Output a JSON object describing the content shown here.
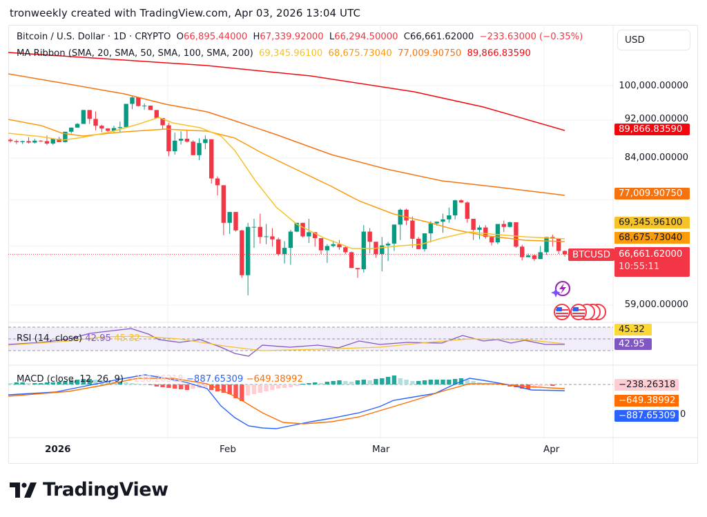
{
  "caption": "tronweekly created with TradingView.com, Apr 03, 2026 13:04 UTC",
  "header": {
    "symbol": "Bitcoin / U.S. Dollar · 1D · CRYPTO",
    "open_label": "O",
    "open": "66,895.44000",
    "high_label": "H",
    "high": "67,339.92000",
    "low_label": "L",
    "low": "66,294.50000",
    "close_label": "C",
    "close": "66,661.62000",
    "change": "−233.63000 (−0.35%)"
  },
  "ma_ribbon": {
    "label": "MA Ribbon (SMA, 20, SMA, 50, SMA, 100, SMA, 200)",
    "ma20": "69,345.96100",
    "ma50": "68,675.73040",
    "ma100": "77,009.90750",
    "ma200": "89,866.83590"
  },
  "currency_button": "USD",
  "price_axis": {
    "ticks": [
      "100,000.00000",
      "92,000.00000",
      "84,000.00000",
      "59,000.00000"
    ]
  },
  "price_tags": {
    "ma200": "89,866.83590",
    "ma100": "77,009.90750",
    "ma20": "69,345.96100",
    "ma50": "68,675.73040",
    "last_price": "66,661.62000",
    "countdown": "10:55:11",
    "symbol_tag": "BTCUSD"
  },
  "rsi": {
    "label": "RSI (14, close)",
    "value": "42.95",
    "smoothed": "45.32"
  },
  "macd": {
    "label": "MACD (close, 12, 26, 9)",
    "histogram": "−238.26318",
    "macd": "−887.65309",
    "signal": "−649.38992",
    "zero_tick": "0"
  },
  "time_axis": [
    "2026",
    "Feb",
    "Mar",
    "Apr"
  ],
  "branding": "TradingView",
  "colors": {
    "up": "#089981",
    "down": "#f23645",
    "ma20": "#f5c227",
    "ma50": "#fb9a0a",
    "ma100": "#f6720f",
    "ma200": "#f3060e",
    "rsi": "#7e57c2",
    "macd": "#2962ff",
    "signal": "#ff6d00"
  },
  "chart_data": {
    "type": "candlestick",
    "title": "Bitcoin / U.S. Dollar · 1D · CRYPTO",
    "xlabel": "",
    "ylabel": "USD",
    "ylim": [
      55000,
      106000
    ],
    "x_ticks": [
      "2026",
      "Feb",
      "Mar",
      "Apr"
    ],
    "y_ticks": [
      59000,
      84000,
      92000,
      100000
    ],
    "ohlc_approx": [
      [
        87800,
        88100,
        87200,
        87500
      ],
      [
        87500,
        87800,
        86900,
        87300
      ],
      [
        87300,
        87600,
        86900,
        87500
      ],
      [
        87500,
        88300,
        87000,
        87200
      ],
      [
        87200,
        88000,
        87000,
        87600
      ],
      [
        87600,
        87700,
        87300,
        87500
      ],
      [
        87500,
        88700,
        86700,
        87000
      ],
      [
        87000,
        88000,
        86700,
        88000
      ],
      [
        88000,
        88400,
        87600,
        87300
      ],
      [
        87300,
        88400,
        87200,
        89500
      ],
      [
        89500,
        90300,
        89100,
        90400
      ],
      [
        90400,
        91400,
        90400,
        91200
      ],
      [
        91200,
        93500,
        92200,
        94300
      ],
      [
        94300,
        94200,
        91200,
        92300
      ],
      [
        92300,
        94000,
        89800,
        90800
      ],
      [
        90800,
        91000,
        89400,
        90200
      ],
      [
        90200,
        90300,
        89400,
        89700
      ],
      [
        89700,
        90800,
        89400,
        90300
      ],
      [
        90300,
        91700,
        89400,
        90500
      ],
      [
        90500,
        95600,
        90600,
        95700
      ],
      [
        95700,
        97400,
        94500,
        97200
      ],
      [
        97200,
        97100,
        95100,
        95200
      ],
      [
        95200,
        95800,
        94400,
        95300
      ],
      [
        95300,
        95200,
        94500,
        94300
      ],
      [
        94300,
        94300,
        92500,
        92500
      ],
      [
        92500,
        91000,
        90100,
        90900
      ],
      [
        90900,
        91400,
        84400,
        85400
      ],
      [
        85400,
        89300,
        84700,
        87600
      ],
      [
        87600,
        89600,
        86800,
        88000
      ],
      [
        88000,
        89700,
        87200,
        87400
      ],
      [
        87400,
        87700,
        85600,
        84600
      ],
      [
        84600,
        88100,
        83600,
        87100
      ],
      [
        87100,
        88700,
        85800,
        87900
      ],
      [
        87900,
        87900,
        79000,
        80000
      ],
      [
        80000,
        80400,
        76800,
        78700
      ],
      [
        78700,
        78700,
        69800,
        71900
      ],
      [
        71900,
        73000,
        70000,
        73800
      ],
      [
        73800,
        73800,
        70400,
        70600
      ],
      [
        70600,
        70700,
        63000,
        63400
      ],
      [
        63400,
        71900,
        60400,
        71200
      ],
      [
        71200,
        72600,
        67700,
        71200
      ],
      [
        71200,
        73500,
        68400,
        69500
      ],
      [
        69500,
        71700,
        68300,
        69600
      ],
      [
        69600,
        71000,
        67900,
        69100
      ],
      [
        69100,
        69400,
        66400,
        66700
      ],
      [
        66700,
        68800,
        65200,
        67700
      ],
      [
        67700,
        70700,
        65000,
        70400
      ],
      [
        70400,
        71700,
        70300,
        71900
      ],
      [
        71900,
        71900,
        69400,
        69600
      ],
      [
        69600,
        72600,
        68500,
        70300
      ],
      [
        70300,
        70300,
        67900,
        69300
      ],
      [
        69300,
        69300,
        66700,
        67300
      ],
      [
        67300,
        68300,
        65300,
        68000
      ],
      [
        68000,
        68900,
        67800,
        68300
      ],
      [
        68300,
        69000,
        67400,
        67800
      ],
      [
        67800,
        68100,
        66700,
        67000
      ],
      [
        67000,
        67100,
        65300,
        64500
      ],
      [
        64500,
        64000,
        63000,
        64300
      ],
      [
        64300,
        71500,
        63800,
        70400
      ],
      [
        70400,
        71000,
        66800,
        68700
      ],
      [
        68700,
        68700,
        66100,
        66700
      ],
      [
        66700,
        69500,
        64000,
        68100
      ],
      [
        68100,
        68700,
        65600,
        68400
      ],
      [
        68400,
        71200,
        67200,
        71600
      ],
      [
        71600,
        74400,
        69000,
        74200
      ],
      [
        74200,
        74400,
        71500,
        72300
      ],
      [
        72300,
        73000,
        67700,
        69200
      ],
      [
        69200,
        69500,
        67800,
        67500
      ],
      [
        67500,
        70100,
        67100,
        70100
      ],
      [
        70100,
        72200,
        68600,
        71800
      ],
      [
        71800,
        71900,
        71400,
        72100
      ],
      [
        72100,
        73500,
        70200,
        72500
      ],
      [
        72500,
        74600,
        71900,
        73200
      ],
      [
        73200,
        76000,
        72500,
        75900
      ],
      [
        75900,
        76100,
        75400,
        75500
      ],
      [
        75500,
        75700,
        71900,
        72600
      ],
      [
        72600,
        72600,
        69000,
        70700
      ],
      [
        70700,
        71500,
        69100,
        71100
      ],
      [
        71100,
        71500,
        69200,
        69500
      ],
      [
        69500,
        69700,
        68100,
        68600
      ],
      [
        68600,
        71600,
        68300,
        71700
      ],
      [
        71700,
        72300,
        70300,
        71200
      ],
      [
        71200,
        72100,
        71100,
        72000
      ],
      [
        72000,
        72000,
        67700,
        67900
      ],
      [
        67900,
        68200,
        65700,
        66200
      ],
      [
        66200,
        66800,
        66200,
        66500
      ],
      [
        66500,
        66600,
        65600,
        65900
      ],
      [
        65900,
        68000,
        66200,
        67000
      ],
      [
        67000,
        69000,
        66600,
        69500
      ],
      [
        69500,
        69900,
        67900,
        69200
      ],
      [
        69200,
        69300,
        66700,
        67200
      ],
      [
        67200,
        67300,
        66300,
        66661
      ]
    ],
    "series": [
      {
        "name": "SMA 20",
        "last": 69345.961
      },
      {
        "name": "SMA 50",
        "last": 68675.7304
      },
      {
        "name": "SMA 100",
        "last": 77009.9075
      },
      {
        "name": "SMA 200",
        "last": 89866.8359
      }
    ],
    "sub_charts": [
      {
        "type": "line",
        "title": "RSI (14, close)",
        "series": [
          {
            "name": "RSI",
            "last": 42.95
          },
          {
            "name": "RSI-based MA",
            "last": 45.32
          }
        ],
        "bands": [
          30,
          50,
          70
        ]
      },
      {
        "type": "bar+line",
        "title": "MACD (close, 12, 26, 9)",
        "series": [
          {
            "name": "Histogram",
            "last": -238.26318
          },
          {
            "name": "MACD",
            "last": -887.65309
          },
          {
            "name": "Signal",
            "last": -649.38992
          }
        ]
      }
    ]
  }
}
